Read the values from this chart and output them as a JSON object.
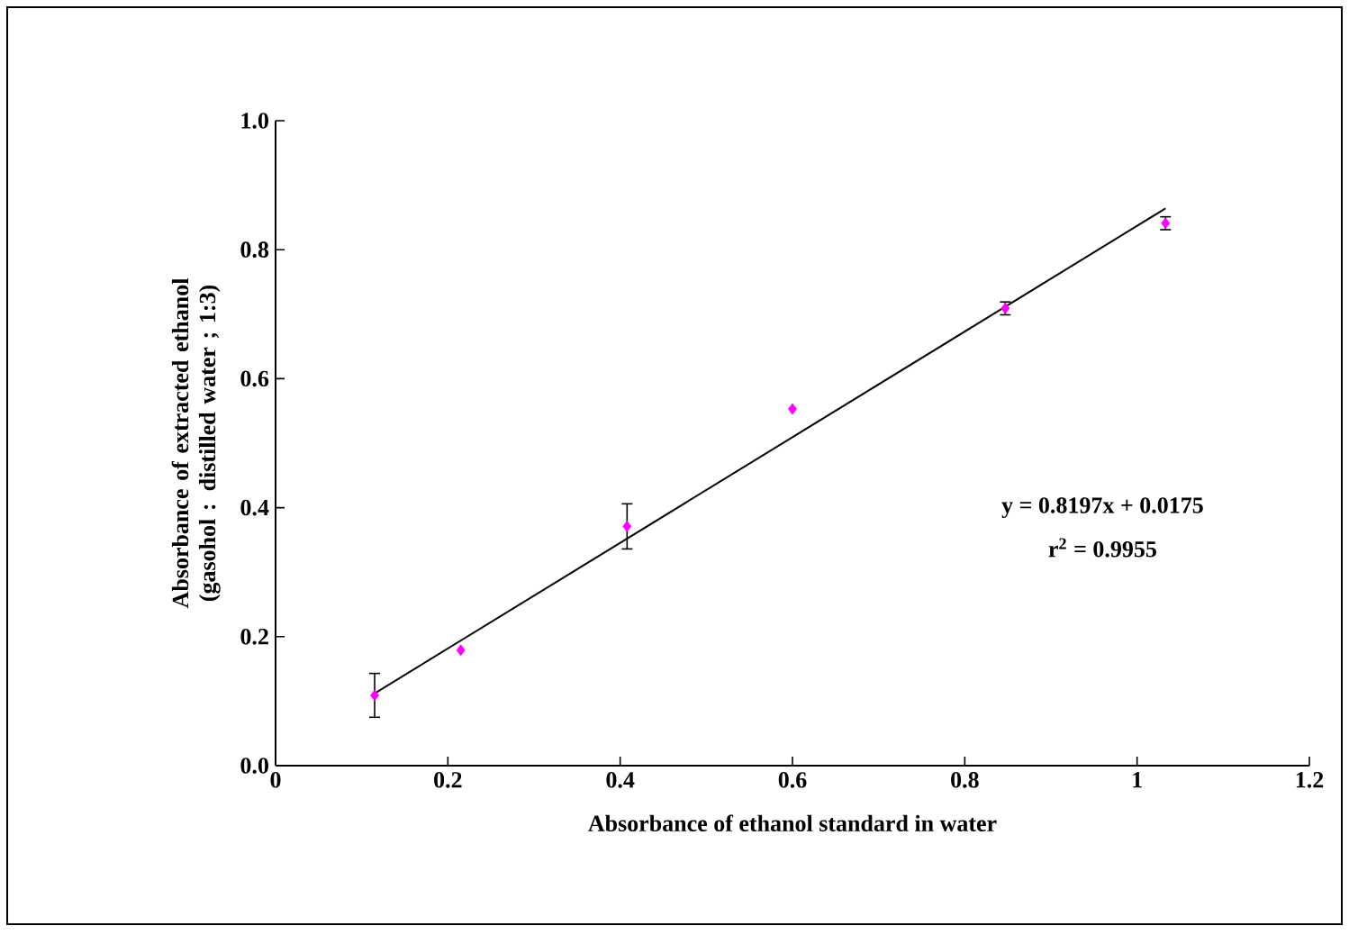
{
  "chart_data": {
    "type": "scatter",
    "xlabel": "Absorbance of ethanol standard in water",
    "ylabel": "Absorbance of  extracted ethanol (gasohol : distilled  water ; 1:3)",
    "xlim": [
      0,
      1.2
    ],
    "ylim": [
      0,
      1.0
    ],
    "xticks": [
      0,
      0.2,
      0.4,
      0.6,
      0.8,
      1,
      1.2
    ],
    "yticks": [
      {
        "value": 0,
        "label": "0.0"
      },
      0.2,
      0.4,
      0.6,
      0.8,
      {
        "value": 1,
        "label": "1.0"
      }
    ],
    "grid": false,
    "series": [
      {
        "color": "#ff00ff",
        "marker": "diamond",
        "x": [
          0.115,
          0.215,
          0.408,
          0.6,
          0.847,
          1.033
        ],
        "values": [
          0.109,
          0.179,
          0.371,
          0.553,
          0.709,
          0.841
        ],
        "errors": [
          0.034,
          null,
          0.035,
          null,
          0.01,
          0.01
        ]
      },
      {
        "type": "line",
        "color": "#000000",
        "marker": "none",
        "x": [
          0.115,
          1.033
        ],
        "values": [
          0.112,
          0.864
        ]
      }
    ],
    "annotations": [
      "y = 0.8197x + 0.0175",
      "r$^{2}$ = 0.9955"
    ]
  }
}
